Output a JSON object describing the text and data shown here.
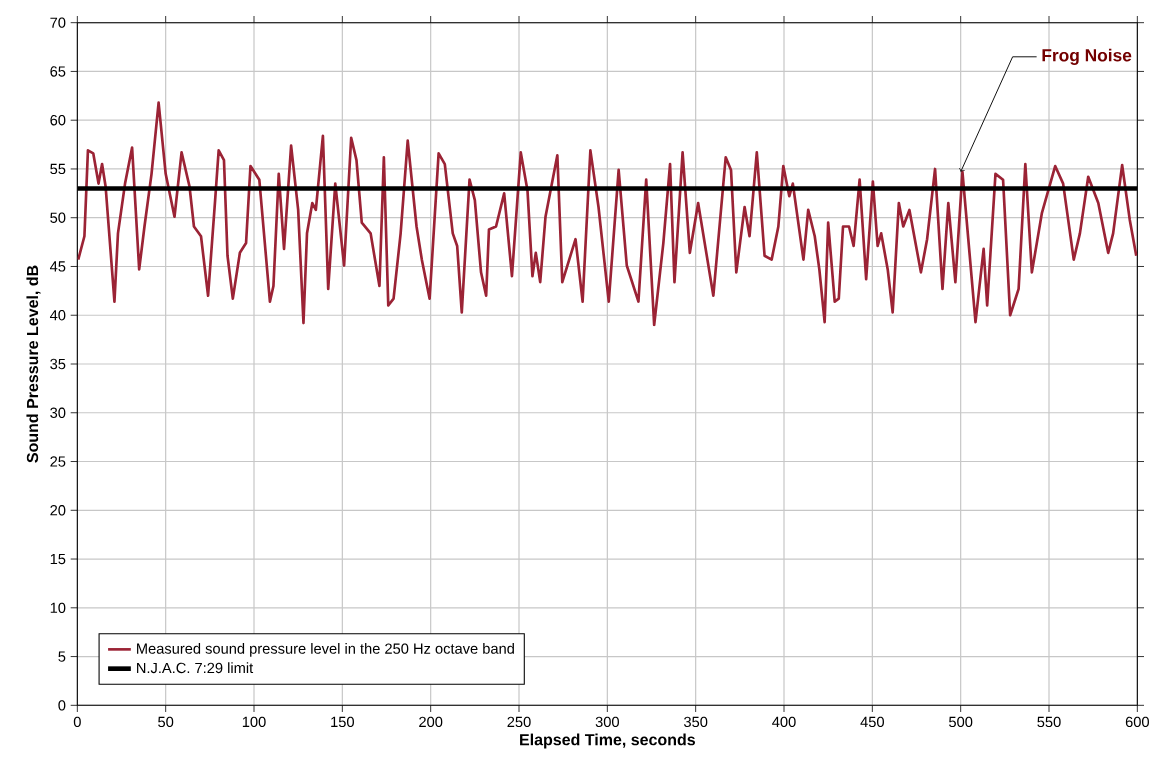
{
  "chart_data": {
    "type": "line",
    "xlabel": "Elapsed Time, seconds",
    "ylabel": "Sound Pressure Level, dB",
    "xlim": [
      0,
      600
    ],
    "ylim": [
      0,
      70
    ],
    "xticks": [
      0,
      50,
      100,
      150,
      200,
      250,
      300,
      350,
      400,
      450,
      500,
      550,
      600
    ],
    "yticks": [
      0,
      5,
      10,
      15,
      20,
      25,
      30,
      35,
      40,
      45,
      50,
      55,
      60,
      65,
      70
    ],
    "grid": true,
    "legend": "bottom left",
    "annotations": [
      {
        "text": "Frog Noise",
        "x": 500,
        "y": 54.7
      }
    ],
    "series": [
      {
        "name": "Measured sound pressure level in the 250 Hz octave band",
        "color": "#9b2335",
        "x": [
          0.5,
          4,
          6,
          9,
          12,
          14,
          16,
          21,
          23,
          27,
          31,
          35,
          38,
          42,
          46,
          50,
          55,
          59,
          63.5,
          66,
          70,
          74,
          78,
          80,
          83,
          85,
          88,
          92,
          95.5,
          98,
          103,
          109,
          111,
          114,
          117,
          121,
          125,
          128,
          130,
          133,
          135,
          139,
          142,
          146,
          151,
          155,
          158,
          161,
          166,
          171,
          173.5,
          176,
          179,
          183,
          187,
          192,
          195,
          199.4,
          204.5,
          208,
          212.5,
          215,
          217.6,
          222,
          225,
          228.5,
          231.4,
          233,
          237,
          241.6,
          246,
          251,
          254.8,
          257.6,
          259.5,
          262,
          265,
          271.7,
          274.5,
          282,
          286,
          290.4,
          295,
          300.8,
          306.4,
          311,
          317.6,
          322,
          326.5,
          331.7,
          335.5,
          338,
          342.6,
          346.7,
          351.4,
          360,
          367,
          370,
          373,
          377.7,
          380.5,
          384.6,
          389,
          393,
          396.8,
          399.6,
          403,
          405,
          411,
          413.7,
          417.4,
          420,
          423,
          425,
          428.7,
          431,
          433.4,
          436.8,
          439.4,
          442.8,
          446.5,
          450.3,
          453,
          455,
          458.7,
          461.5,
          465,
          467.5,
          471,
          477.5,
          481,
          485.5,
          489.7,
          493,
          497,
          501,
          508.4,
          513,
          515,
          519.7,
          524,
          528,
          532.8,
          536.6,
          540.3,
          546,
          553.5,
          558,
          564,
          567.5,
          572.2,
          577.9,
          583.5,
          586.3,
          591.4,
          595.7,
          599.4
        ],
        "values": [
          45.7,
          48.1,
          56.9,
          56.6,
          53.5,
          55.5,
          53.2,
          41.4,
          48.4,
          53.5,
          57.2,
          44.7,
          49.1,
          54.5,
          61.8,
          54.5,
          50.1,
          56.7,
          53.2,
          49.1,
          48.1,
          42,
          51.8,
          56.9,
          55.9,
          46.1,
          41.7,
          46.4,
          47.4,
          55.3,
          53.9,
          41.4,
          43,
          54.5,
          46.8,
          57.4,
          50.8,
          39.2,
          48.4,
          51.5,
          50.8,
          58.4,
          42.7,
          53.5,
          45.1,
          58.2,
          55.9,
          49.5,
          48.4,
          43,
          56.2,
          41,
          41.7,
          48.4,
          57.9,
          49.1,
          45.7,
          41.7,
          56.6,
          55.5,
          48.4,
          47.1,
          40.3,
          53.9,
          51.8,
          44.4,
          42,
          48.8,
          49.1,
          52.5,
          44,
          56.7,
          52.8,
          44,
          46.4,
          43.4,
          50.1,
          56.4,
          43.4,
          47.8,
          41.4,
          56.9,
          51.1,
          41.4,
          54.9,
          45.1,
          41.4,
          53.9,
          39,
          47.4,
          55.5,
          43.4,
          56.7,
          46.4,
          51.5,
          42,
          56.2,
          54.9,
          44.4,
          51.1,
          48.1,
          56.7,
          46.1,
          45.7,
          49.1,
          55.3,
          52.2,
          53.5,
          45.7,
          50.8,
          48.1,
          44.7,
          39.3,
          49.5,
          41.4,
          41.7,
          49.1,
          49.1,
          47.1,
          53.9,
          43.7,
          53.7,
          47.1,
          48.4,
          44.7,
          40.3,
          51.5,
          49.1,
          50.8,
          44.4,
          47.8,
          55,
          42.7,
          51.5,
          43.4,
          54.7,
          39.3,
          46.8,
          41,
          54.5,
          53.9,
          40,
          42.7,
          55.5,
          44.4,
          50.5,
          55.3,
          53.5,
          45.7,
          48.4,
          54.2,
          51.5,
          46.4,
          48.4,
          55.4,
          49.8,
          46.1
        ]
      },
      {
        "name": "N.J.A.C. 7:29 limit",
        "color": "#000000",
        "x": [
          0,
          600
        ],
        "values": [
          53,
          53
        ]
      }
    ]
  }
}
